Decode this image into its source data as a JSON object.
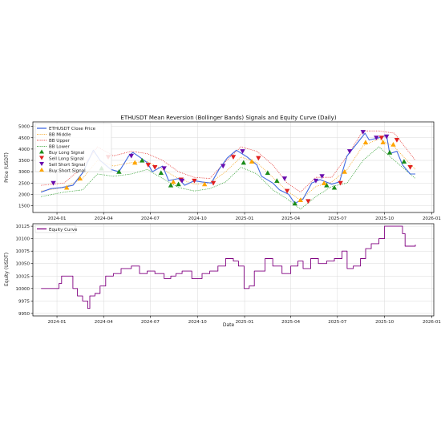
{
  "chart_data": [
    {
      "type": "line",
      "title": "ETHUSDT Mean Reversion (Bollinger Bands) Signals and Equity Curve (Daily)",
      "xlabel": "",
      "ylabel": "Price (USDT)",
      "ylim": [
        1200,
        5200
      ],
      "yticks": [
        1500,
        2000,
        2500,
        3000,
        3500,
        4000,
        4500,
        5000
      ],
      "x_tick_labels": [
        "2024-01",
        "2024-04",
        "2024-07",
        "2024-10",
        "2025-01",
        "2025-04",
        "2025-07",
        "2025-10",
        "2026-01"
      ],
      "x_tick_dates": [
        "2024-01-01",
        "2024-04-01",
        "2024-07-01",
        "2024-10-01",
        "2025-01-01",
        "2025-04-01",
        "2025-07-01",
        "2025-10-01",
        "2026-01-01"
      ],
      "xlim": [
        "2023-11-15",
        "2026-01-05"
      ],
      "grid": true,
      "legend_position": "upper-left",
      "series": [
        {
          "name": "ETHUSDT Close Price",
          "color": "#4169e1",
          "style": "solid",
          "x": [
            "2023-12-01",
            "2023-12-20",
            "2024-01-10",
            "2024-02-01",
            "2024-02-20",
            "2024-03-12",
            "2024-03-25",
            "2024-04-15",
            "2024-05-01",
            "2024-05-20",
            "2024-05-28",
            "2024-06-10",
            "2024-06-25",
            "2024-07-05",
            "2024-07-25",
            "2024-08-06",
            "2024-08-25",
            "2024-09-06",
            "2024-09-25",
            "2024-10-10",
            "2024-10-28",
            "2024-11-12",
            "2024-11-28",
            "2024-12-16",
            "2025-01-06",
            "2025-01-25",
            "2025-02-03",
            "2025-02-25",
            "2025-03-10",
            "2025-03-28",
            "2025-04-09",
            "2025-04-25",
            "2025-05-12",
            "2025-05-28",
            "2025-06-20",
            "2025-07-05",
            "2025-07-20",
            "2025-08-10",
            "2025-08-24",
            "2025-09-01",
            "2025-09-20",
            "2025-10-05",
            "2025-10-11",
            "2025-10-25",
            "2025-11-05",
            "2025-11-20",
            "2025-11-30"
          ],
          "values": [
            2100,
            2250,
            2300,
            2400,
            2950,
            3950,
            3500,
            3100,
            3000,
            3700,
            3850,
            3650,
            3400,
            3000,
            3250,
            2600,
            2700,
            2400,
            2600,
            2550,
            2500,
            3100,
            3600,
            3950,
            3650,
            3300,
            2800,
            2500,
            2200,
            2000,
            1600,
            1800,
            2500,
            2650,
            2450,
            2550,
            3700,
            4300,
            4700,
            4400,
            4500,
            4600,
            3800,
            3900,
            3300,
            2900,
            2900
          ]
        },
        {
          "name": "BB Middle",
          "color": "#f5a623",
          "style": "dotted",
          "x": [
            "2023-12-01",
            "2024-01-15",
            "2024-02-20",
            "2024-03-20",
            "2024-04-20",
            "2024-05-25",
            "2024-06-25",
            "2024-07-25",
            "2024-08-25",
            "2024-09-25",
            "2024-10-25",
            "2024-11-25",
            "2024-12-25",
            "2025-01-25",
            "2025-02-25",
            "2025-03-25",
            "2025-04-20",
            "2025-05-20",
            "2025-06-20",
            "2025-07-20",
            "2025-08-20",
            "2025-09-20",
            "2025-10-20",
            "2025-11-30"
          ],
          "values": [
            2150,
            2300,
            2700,
            3500,
            3250,
            3400,
            3450,
            3100,
            2700,
            2450,
            2500,
            3000,
            3650,
            3400,
            2750,
            2150,
            1750,
            2350,
            2550,
            3100,
            4150,
            4450,
            4100,
            3100
          ]
        },
        {
          "name": "BB Upper",
          "color": "#e53935",
          "style": "dotted",
          "x": [
            "2023-12-01",
            "2024-01-15",
            "2024-02-20",
            "2024-03-20",
            "2024-04-20",
            "2024-05-25",
            "2024-06-25",
            "2024-07-25",
            "2024-08-25",
            "2024-09-25",
            "2024-10-25",
            "2024-11-25",
            "2024-12-25",
            "2025-01-25",
            "2025-02-25",
            "2025-03-25",
            "2025-04-20",
            "2025-05-20",
            "2025-06-20",
            "2025-07-20",
            "2025-08-20",
            "2025-09-20",
            "2025-10-20",
            "2025-11-30"
          ],
          "values": [
            2400,
            2500,
            3200,
            4100,
            3700,
            3900,
            3800,
            3500,
            3000,
            2750,
            2700,
            3450,
            4100,
            3900,
            3300,
            2500,
            2100,
            2750,
            2750,
            3700,
            4800,
            4800,
            4700,
            3500
          ]
        },
        {
          "name": "BB Lower",
          "color": "#2e9e2e",
          "style": "dotted",
          "x": [
            "2023-12-01",
            "2024-01-15",
            "2024-02-20",
            "2024-03-20",
            "2024-04-20",
            "2024-05-25",
            "2024-06-25",
            "2024-07-25",
            "2024-08-25",
            "2024-09-25",
            "2024-10-25",
            "2024-11-25",
            "2024-12-25",
            "2025-01-25",
            "2025-02-25",
            "2025-03-25",
            "2025-04-20",
            "2025-05-20",
            "2025-06-20",
            "2025-07-20",
            "2025-08-20",
            "2025-09-20",
            "2025-10-20",
            "2025-11-30"
          ],
          "values": [
            1900,
            2100,
            2200,
            2900,
            2800,
            2900,
            3100,
            2700,
            2300,
            2150,
            2250,
            2550,
            3200,
            2900,
            2200,
            1800,
            1350,
            1900,
            2350,
            2500,
            3500,
            4100,
            3500,
            2700
          ]
        }
      ],
      "markers": [
        {
          "name": "Buy Long Signal",
          "color": "#1a8c1a",
          "symbol": "triangle-up",
          "x": [
            "2024-03-28",
            "2024-05-01",
            "2024-06-15",
            "2024-07-22",
            "2024-08-10",
            "2024-08-25",
            "2024-12-30",
            "2025-02-15",
            "2025-03-05",
            "2025-04-09",
            "2025-06-10",
            "2025-06-25",
            "2025-10-11",
            "2025-11-08"
          ],
          "y": [
            3150,
            3000,
            3500,
            2950,
            2400,
            2450,
            3400,
            2950,
            2600,
            1600,
            2400,
            2300,
            3850,
            3450
          ]
        },
        {
          "name": "Sell Long Signal",
          "color": "#e02020",
          "symbol": "triangle-down",
          "x": [
            "2024-04-10",
            "2024-06-27",
            "2024-07-10",
            "2024-08-30",
            "2024-09-25",
            "2024-11-01",
            "2024-12-10",
            "2025-01-28",
            "2025-03-25",
            "2025-05-05",
            "2025-07-07",
            "2025-09-25",
            "2025-10-25",
            "2025-11-20"
          ],
          "y": [
            3650,
            3300,
            3200,
            2650,
            2600,
            2500,
            3650,
            3600,
            2150,
            1700,
            2500,
            4500,
            4400,
            3200
          ]
        },
        {
          "name": "Sell Short Signal",
          "color": "#6a0dad",
          "symbol": "triangle-down",
          "x": [
            "2023-12-25",
            "2024-05-25",
            "2024-07-28",
            "2024-09-01",
            "2024-11-20",
            "2024-12-28",
            "2025-03-20",
            "2025-05-20",
            "2025-06-01",
            "2025-07-25",
            "2025-08-20",
            "2025-09-15",
            "2025-10-05"
          ],
          "y": [
            2500,
            3700,
            3150,
            2600,
            3250,
            3900,
            2700,
            2600,
            2800,
            3900,
            4750,
            4500,
            4550
          ]
        },
        {
          "name": "Buy Short Signal",
          "color": "#ffa500",
          "symbol": "triangle-up",
          "x": [
            "2024-01-20",
            "2024-02-15",
            "2024-06-01",
            "2024-08-15",
            "2024-10-15",
            "2025-01-15",
            "2025-04-20",
            "2025-06-05",
            "2025-07-15",
            "2025-08-25",
            "2025-09-28",
            "2025-10-18"
          ],
          "y": [
            2300,
            2700,
            3400,
            2550,
            2450,
            3450,
            1750,
            2500,
            3000,
            4300,
            4300,
            4200
          ]
        }
      ]
    },
    {
      "type": "line",
      "title": "",
      "xlabel": "Date",
      "ylabel": "Equity (USDT)",
      "ylim": [
        9945,
        10130
      ],
      "yticks": [
        9950,
        9975,
        10000,
        10025,
        10050,
        10075,
        10100,
        10125
      ],
      "x_tick_labels": [
        "2024-01",
        "2024-04",
        "2024-07",
        "2024-10",
        "2025-01",
        "2025-04",
        "2025-07",
        "2025-10",
        "2026-01"
      ],
      "x_tick_dates": [
        "2024-01-01",
        "2024-04-01",
        "2024-07-01",
        "2024-10-01",
        "2025-01-01",
        "2025-04-01",
        "2025-07-01",
        "2025-10-01",
        "2026-01-01"
      ],
      "xlim": [
        "2023-11-15",
        "2026-01-05"
      ],
      "grid": true,
      "legend_position": "upper-left",
      "series": [
        {
          "name": "Equity Curve",
          "color": "#800080",
          "style": "solid",
          "x": [
            "2023-12-01",
            "2023-12-31",
            "2024-01-05",
            "2024-01-10",
            "2024-01-30",
            "2024-02-01",
            "2024-02-10",
            "2024-02-20",
            "2024-03-01",
            "2024-03-05",
            "2024-03-15",
            "2024-03-25",
            "2024-04-05",
            "2024-04-20",
            "2024-05-05",
            "2024-05-25",
            "2024-06-10",
            "2024-06-25",
            "2024-07-10",
            "2024-07-28",
            "2024-08-10",
            "2024-08-20",
            "2024-09-01",
            "2024-09-20",
            "2024-10-10",
            "2024-10-25",
            "2024-11-10",
            "2024-11-25",
            "2024-12-10",
            "2024-12-20",
            "2024-12-31",
            "2025-01-10",
            "2025-01-20",
            "2025-02-10",
            "2025-02-25",
            "2025-03-15",
            "2025-04-01",
            "2025-04-15",
            "2025-04-25",
            "2025-05-10",
            "2025-05-25",
            "2025-06-10",
            "2025-06-25",
            "2025-07-10",
            "2025-07-20",
            "2025-08-01",
            "2025-08-15",
            "2025-08-25",
            "2025-09-05",
            "2025-09-20",
            "2025-10-01",
            "2025-10-10",
            "2025-10-31",
            "2025-11-05",
            "2025-11-10",
            "2025-11-30"
          ],
          "values": [
            10000,
            10000,
            10010,
            10025,
            10025,
            10000,
            9985,
            9975,
            9960,
            9985,
            9990,
            10005,
            10025,
            10030,
            10040,
            10045,
            10030,
            10035,
            10030,
            10020,
            10025,
            10030,
            10035,
            10020,
            10030,
            10035,
            10045,
            10060,
            10055,
            10045,
            10000,
            10005,
            10035,
            10060,
            10045,
            10030,
            10045,
            10055,
            10040,
            10060,
            10050,
            10055,
            10060,
            10075,
            10040,
            10045,
            10060,
            10080,
            10090,
            10100,
            10125,
            10125,
            10125,
            10110,
            10085,
            10088
          ]
        }
      ]
    }
  ]
}
